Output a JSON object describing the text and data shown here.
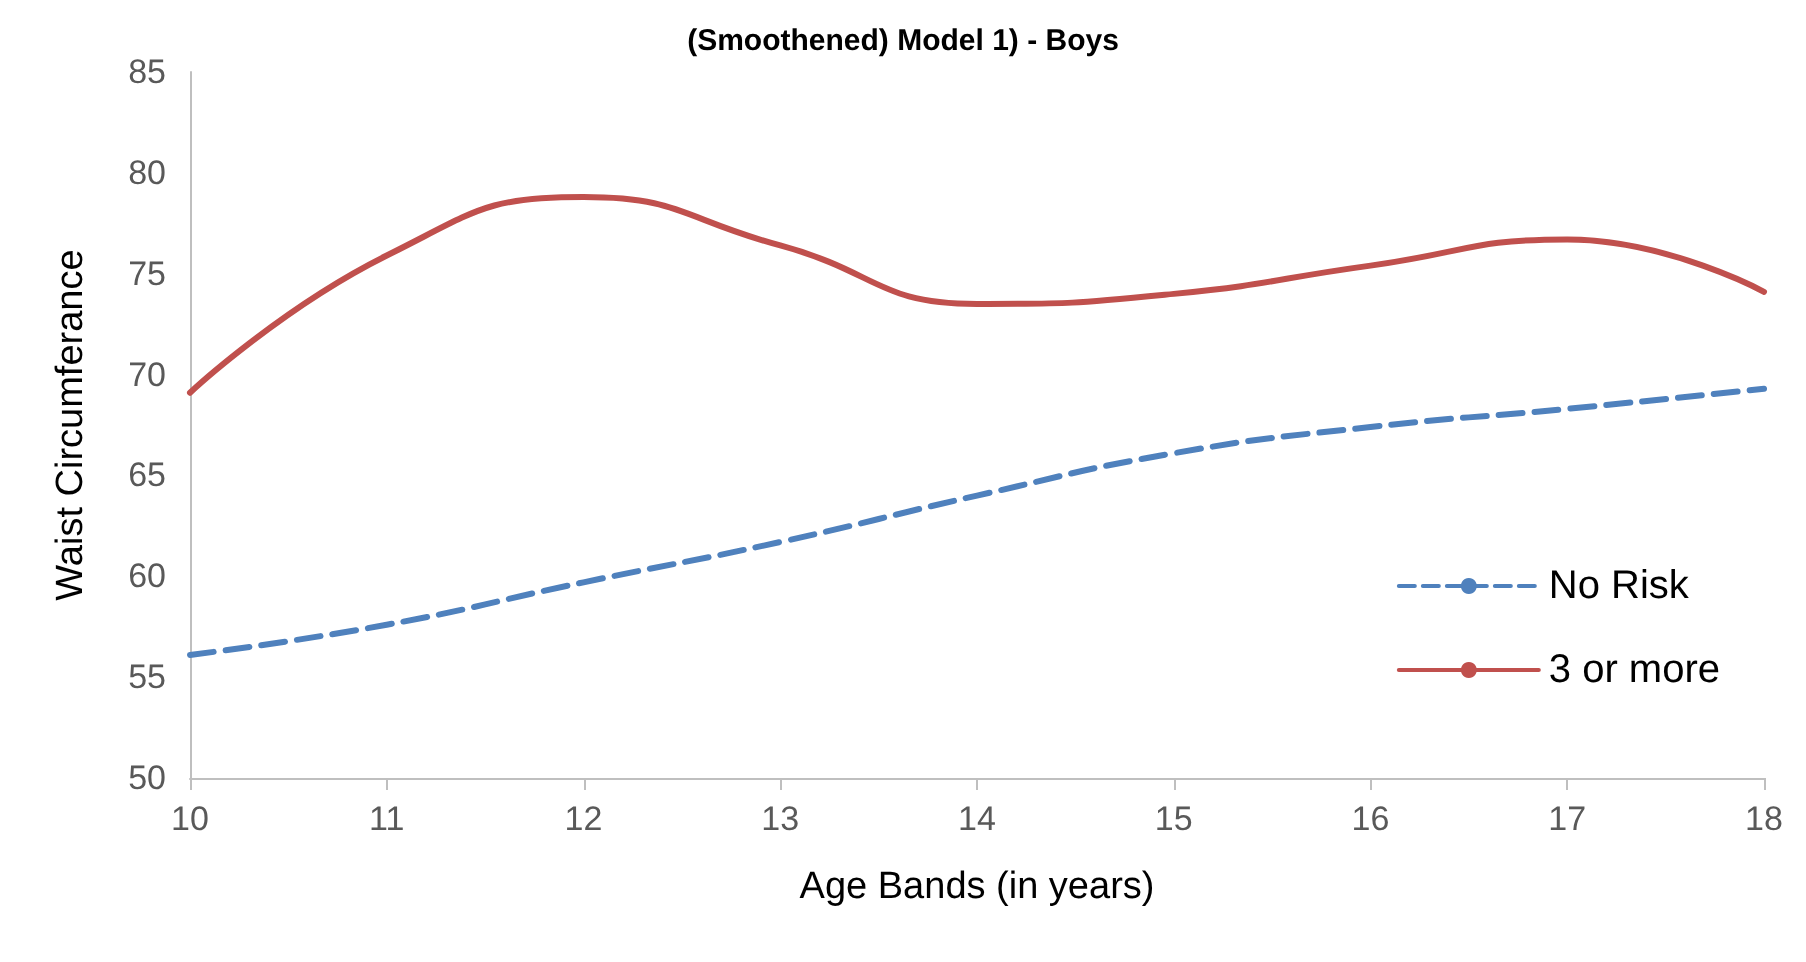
{
  "chart_data": {
    "type": "line",
    "title": "(Smoothened) Model 1) - Boys",
    "xlabel": "Age Bands (in years)",
    "ylabel": "Waist Circumferance",
    "x": [
      10,
      11,
      12,
      13,
      14,
      15,
      16,
      17,
      18
    ],
    "xlim": [
      10,
      18
    ],
    "xticks": [
      10,
      11,
      12,
      13,
      14,
      15,
      16,
      17,
      18
    ],
    "ylim": [
      50,
      85
    ],
    "yticks": [
      50,
      55,
      60,
      65,
      70,
      75,
      80,
      85
    ],
    "series": [
      {
        "name": "No Risk",
        "color": "#4f81bd",
        "line_style": "dashed",
        "values": [
          56.1,
          57.6,
          59.7,
          61.7,
          64.0,
          66.1,
          67.4,
          68.3,
          69.3
        ]
      },
      {
        "name": "3 or more",
        "color": "#c0504d",
        "line_style": "solid",
        "values": [
          69.1,
          75.9,
          78.8,
          76.4,
          73.5,
          74.0,
          75.4,
          76.7,
          74.1
        ]
      }
    ],
    "legend": "right",
    "marker": "none",
    "grid": false
  }
}
